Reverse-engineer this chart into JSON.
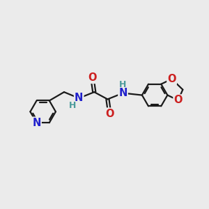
{
  "bg_color": "#ebebeb",
  "bond_color": "#1a1a1a",
  "bond_width": 1.6,
  "atom_colors": {
    "N": "#2020cc",
    "O": "#cc2020",
    "H": "#4a9a9a",
    "C": "#1a1a1a"
  },
  "font_size_atom": 10.5,
  "font_size_H": 9.0,
  "xlim": [
    0,
    10
  ],
  "ylim": [
    2,
    8
  ]
}
